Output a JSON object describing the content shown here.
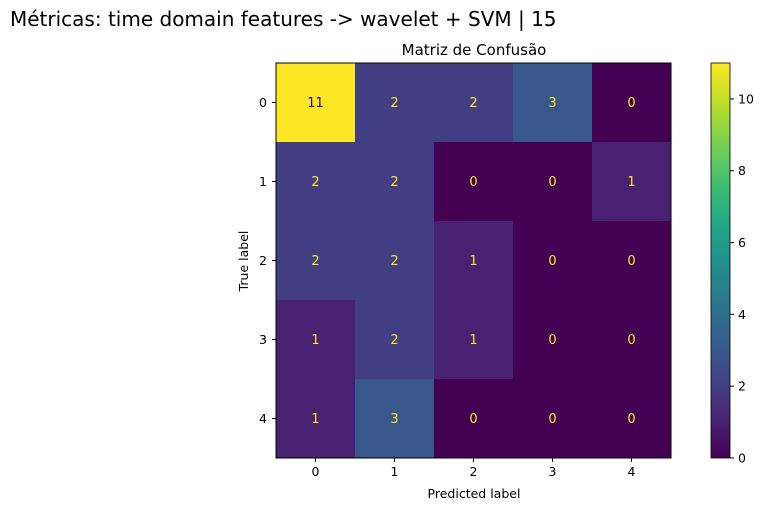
{
  "figure": {
    "title": "Métricas: time domain features -> wavelet + SVM | 15"
  },
  "chart_data": {
    "type": "heatmap",
    "title": "Matriz de Confusão",
    "xlabel": "Predicted label",
    "ylabel": "True label",
    "x_ticks": [
      "0",
      "1",
      "2",
      "3",
      "4"
    ],
    "y_ticks": [
      "0",
      "1",
      "2",
      "3",
      "4"
    ],
    "matrix": [
      [
        11,
        2,
        2,
        3,
        0
      ],
      [
        2,
        2,
        0,
        0,
        1
      ],
      [
        2,
        2,
        1,
        0,
        0
      ],
      [
        1,
        2,
        1,
        0,
        0
      ],
      [
        1,
        3,
        0,
        0,
        0
      ]
    ],
    "colorbar": {
      "colormap": "viridis",
      "min": 0,
      "max": 11,
      "ticks": [
        0,
        2,
        4,
        6,
        8,
        10
      ]
    },
    "text_colors": {
      "on_dark": "#fde725",
      "on_light": "#440154"
    }
  }
}
